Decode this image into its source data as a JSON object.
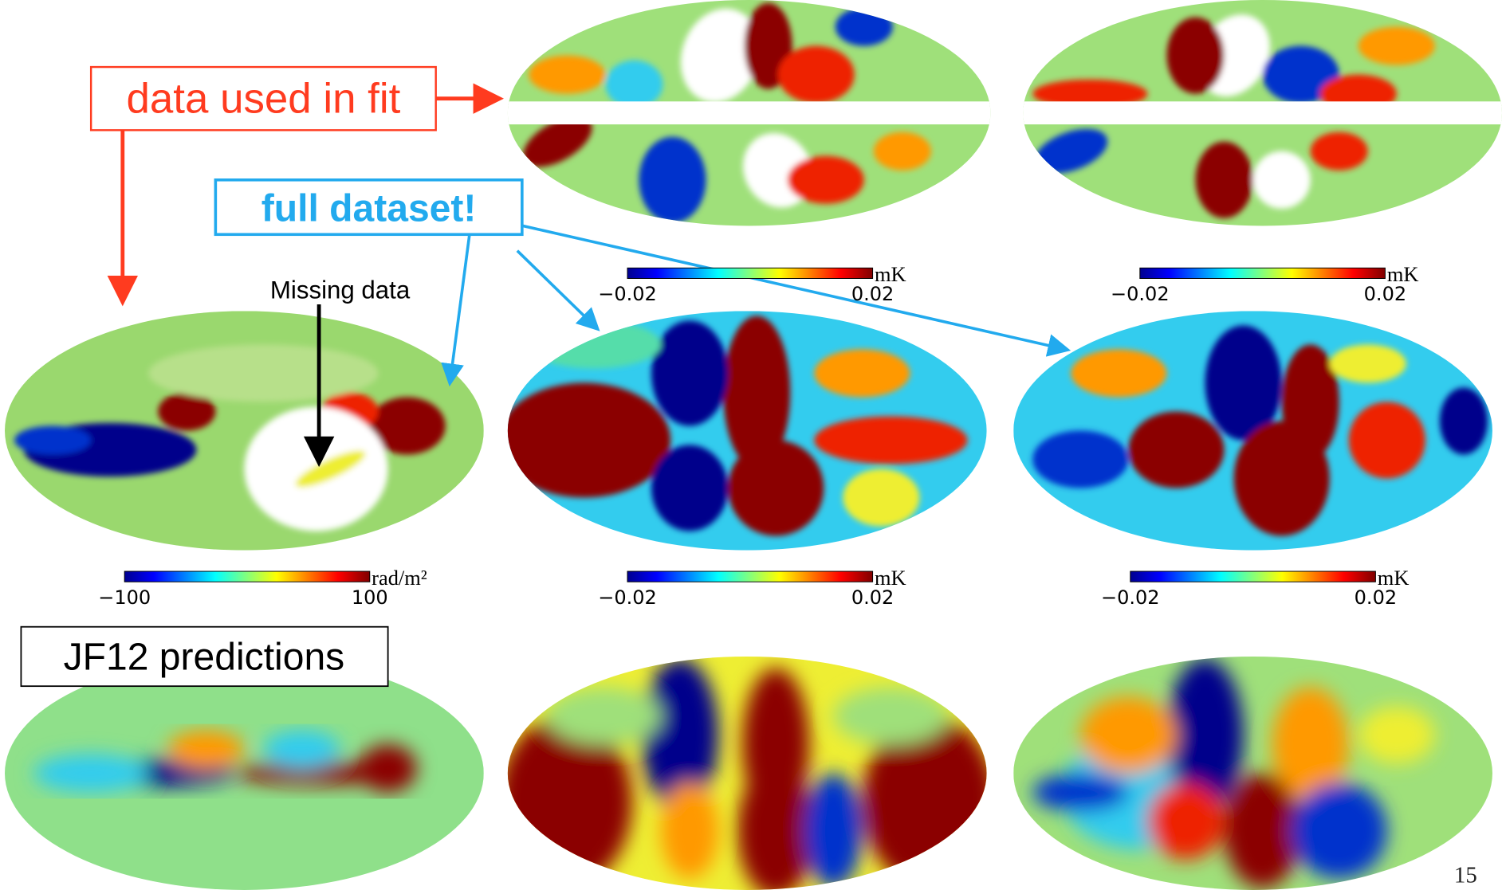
{
  "annotations": {
    "fit_label": "data used in fit",
    "full_label": "full dataset!",
    "missing_label": "Missing data",
    "prediction_label": "JF12 predictions"
  },
  "colorbars": [
    {
      "min": "−0.02",
      "max": "0.02",
      "unit": "mK"
    },
    {
      "min": "−0.02",
      "max": "0.02",
      "unit": "mK"
    },
    {
      "min": "−100",
      "max": "100",
      "unit": "rad/m²"
    },
    {
      "min": "−0.02",
      "max": "0.02",
      "unit": "mK"
    },
    {
      "min": "−0.02",
      "max": "0.02",
      "unit": "mK"
    }
  ],
  "page_number": "15"
}
